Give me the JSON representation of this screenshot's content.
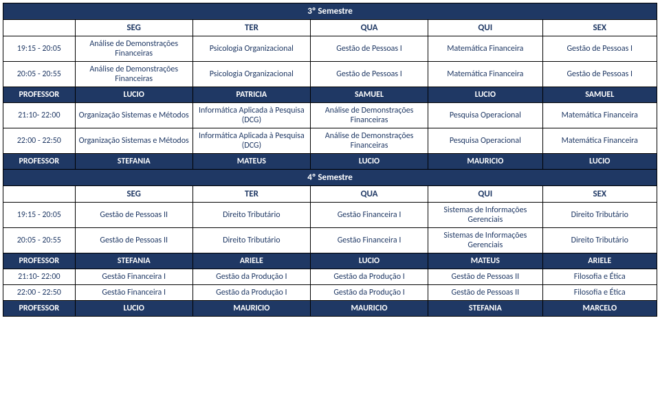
{
  "colors": {
    "band_bg": "#1f3864",
    "band_fg": "#ffffff",
    "text_fg": "#1f3864",
    "border": "#000000",
    "page_bg": "#ffffff"
  },
  "semesters": [
    {
      "title": "3º Semestre",
      "days": [
        "SEG",
        "TER",
        "QUA",
        "QUI",
        "SEX"
      ],
      "blocks": [
        {
          "rows": [
            {
              "time": "19:15 - 20:05",
              "cells": [
                "Análise de Demonstrações Financeiras",
                "Psicologia Organizacional",
                "Gestão de Pessoas I",
                "Matemática Financeira",
                "Gestão de Pessoas I"
              ]
            },
            {
              "time": "20:05 - 20:55",
              "cells": [
                "Análise de Demonstrações Financeiras",
                "Psicologia Organizacional",
                "Gestão de Pessoas I",
                "Matemática Financeira",
                "Gestão de Pessoas I"
              ]
            }
          ],
          "professor_label": "PROFESSOR",
          "professors": [
            "LUCIO",
            "PATRICIA",
            "SAMUEL",
            "LUCIO",
            "SAMUEL"
          ]
        },
        {
          "rows": [
            {
              "time": "21:10- 22:00",
              "cells": [
                "Organização Sistemas e Métodos",
                "Informática Aplicada à Pesquisa (DCG)",
                "Análise de Demonstrações Financeiras",
                "Pesquisa Operacional",
                "Matemática Financeira"
              ]
            },
            {
              "time": "22:00 - 22:50",
              "cells": [
                "Organização Sistemas e Métodos",
                "Informática Aplicada à Pesquisa (DCG)",
                "Análise de Demonstrações Financeiras",
                "Pesquisa Operacional",
                "Matemática Financeira"
              ]
            }
          ],
          "professor_label": "PROFESSOR",
          "professors": [
            "STEFANIA",
            "MATEUS",
            "LUCIO",
            "MAURICIO",
            "LUCIO"
          ]
        }
      ]
    },
    {
      "title": "4º Semestre",
      "days": [
        "SEG",
        "TER",
        "QUA",
        "QUI",
        "SEX"
      ],
      "blocks": [
        {
          "rows": [
            {
              "time": "19:15 - 20:05",
              "cells": [
                "Gestão de Pessoas II",
                "Direito Tributário",
                "Gestão Financeira I",
                "Sistemas de Informações Gerenciais",
                "Direito Tributário"
              ]
            },
            {
              "time": "20:05 - 20:55",
              "cells": [
                "Gestão de Pessoas II",
                "Direito Tributário",
                "Gestão Financeira I",
                "Sistemas de Informações Gerenciais",
                "Direito Tributário"
              ]
            }
          ],
          "professor_label": "PROFESSOR",
          "professors": [
            "STEFANIA",
            "ARIELE",
            "LUCIO",
            "MATEUS",
            "ARIELE"
          ]
        },
        {
          "rows": [
            {
              "time": "21:10- 22:00",
              "cells": [
                "Gestão Financeira I",
                "Gestão da Produção I",
                "Gestão da Produção I",
                "Gestão de Pessoas II",
                "Filosofia e Ética"
              ]
            },
            {
              "time": "22:00 - 22:50",
              "cells": [
                "Gestão Financeira I",
                "Gestão da Produção I",
                "Gestão da Produção I",
                "Gestão de Pessoas II",
                "Filosofia e Ética"
              ]
            }
          ],
          "professor_label": "PROFESSOR",
          "professors": [
            "LUCIO",
            "MAURICIO",
            "MAURICIO",
            "STEFANIA",
            "MARCELO"
          ]
        }
      ]
    }
  ]
}
